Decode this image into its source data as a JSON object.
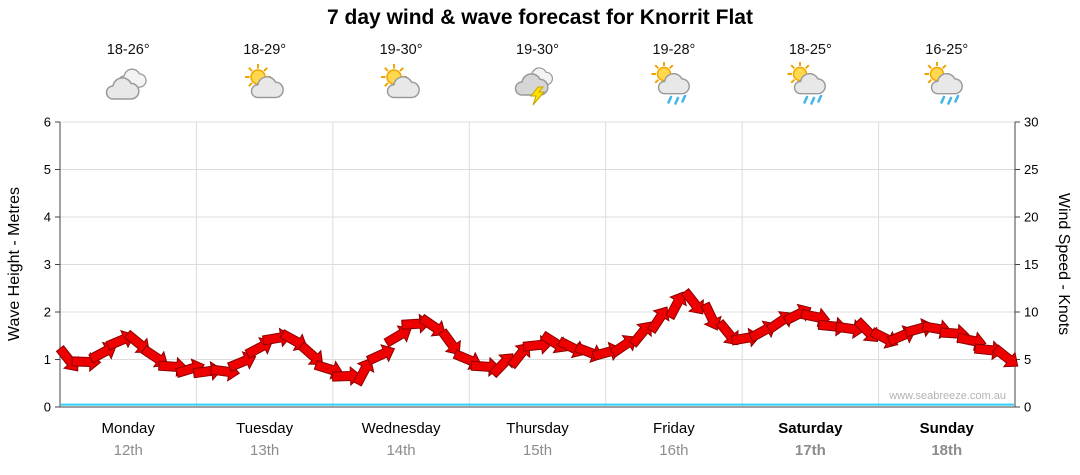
{
  "header": {
    "title": "7 day wind & wave forecast for Knorrit Flat"
  },
  "days": [
    {
      "name": "Monday",
      "date": "12th",
      "temp": "18-26°",
      "icon": "cloudy",
      "bold": false
    },
    {
      "name": "Tuesday",
      "date": "13th",
      "temp": "18-29°",
      "icon": "partly-cloudy",
      "bold": false
    },
    {
      "name": "Wednesday",
      "date": "14th",
      "temp": "19-30°",
      "icon": "partly-cloudy",
      "bold": false
    },
    {
      "name": "Thursday",
      "date": "15th",
      "temp": "19-30°",
      "icon": "thunderstorm",
      "bold": false
    },
    {
      "name": "Friday",
      "date": "16th",
      "temp": "19-28°",
      "icon": "sun-showers",
      "bold": false
    },
    {
      "name": "Saturday",
      "date": "17th",
      "temp": "18-25°",
      "icon": "sun-showers",
      "bold": true
    },
    {
      "name": "Sunday",
      "date": "18th",
      "temp": "16-25°",
      "icon": "sun-showers",
      "bold": true
    }
  ],
  "axes": {
    "left_label": "Wave Height - Metres",
    "right_label": "Wind Speed - Knots",
    "left_ticks": [
      0,
      1,
      2,
      3,
      4,
      5,
      6
    ],
    "right_ticks": [
      0,
      5,
      10,
      15,
      20,
      25,
      30
    ]
  },
  "watermark": {
    "text": "www.seabreeze.com.au"
  },
  "colors": {
    "wind": "#ee0000",
    "wind_outline": "#8b0000",
    "wave": "#33ccff",
    "grid": "#dcdcdc",
    "axis": "#444444",
    "date_text": "#8c8c8c",
    "sun": "#ffd84d",
    "sun_ray": "#f0a500",
    "cloud_fill": "#e8e8e8",
    "cloud_stroke": "#999999",
    "rain": "#45b6e8",
    "bolt": "#ffdf00"
  },
  "chart_data": {
    "type": "line",
    "title": "7 day wind & wave forecast for Knorrit Flat",
    "categories": [
      "Monday 12th",
      "Tuesday 13th",
      "Wednesday 14th",
      "Thursday 15th",
      "Friday 16th",
      "Saturday 17th",
      "Sunday 18th"
    ],
    "points_per_day": 8,
    "ylabel_left": "Wave Height - Metres",
    "ylim_left": [
      0,
      6
    ],
    "ylabel_right": "Wind Speed - Knots",
    "ylim_right": [
      0,
      30
    ],
    "grid": true,
    "series": [
      {
        "name": "Wind Speed",
        "unit": "knots",
        "style": "red-arrows",
        "color": "#ee0000",
        "values": [
          5.5,
          4.5,
          5,
          6.5,
          7.5,
          6,
          4.5,
          4,
          4,
          3.5,
          4,
          5.5,
          7,
          7.5,
          6.5,
          4.5,
          3.5,
          3,
          4.5,
          6.5,
          8.5,
          9,
          8,
          5.5,
          4.5,
          4,
          5,
          6,
          7,
          6.5,
          6,
          5.5,
          6,
          7,
          8.5,
          10,
          11.5,
          10.5,
          8.5,
          7,
          7.5,
          8.5,
          9.5,
          10,
          9,
          8,
          8.5,
          7.5,
          7,
          8,
          8.5,
          8,
          7.5,
          6.5,
          5.5,
          5
        ]
      },
      {
        "name": "Wave Height",
        "unit": "metres",
        "style": "flat-line",
        "color": "#33ccff",
        "constant": 0.05
      }
    ]
  }
}
